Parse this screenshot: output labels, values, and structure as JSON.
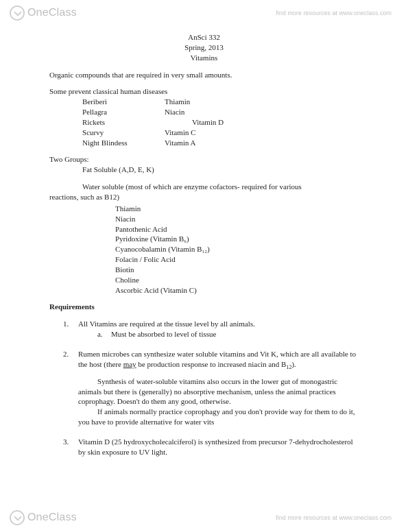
{
  "watermark": {
    "brand_one": "One",
    "brand_class": "Class",
    "tagline": "find more resources at www.oneclass.com"
  },
  "heading": {
    "course": "AnSci 332",
    "term": "Spring, 2013",
    "title": "Vitamins"
  },
  "intro": "Organic compounds that are required in very small amounts.",
  "diseases_intro": "Some prevent classical human diseases",
  "diseases": [
    {
      "name": "Beriberi",
      "vitamin": "Thiamin",
      "offset": false
    },
    {
      "name": "Pellagra",
      "vitamin": "Niacin",
      "offset": false
    },
    {
      "name": "Rickets",
      "vitamin": "Vitamin D",
      "offset": true
    },
    {
      "name": "Scurvy",
      "vitamin": "Vitamin C",
      "offset": false
    },
    {
      "name": "Night Blindess",
      "vitamin": "Vitamin A",
      "offset": false
    }
  ],
  "groups_label": "Two Groups:",
  "fat_soluble": "Fat Soluble (A,D, E, K)",
  "water_soluble_intro_a": "Water soluble (most of which are enzyme cofactors- required for various",
  "water_soluble_intro_b": "reactions, such as B12)",
  "water_soluble_list": [
    "Thiamin",
    "Niacin",
    "Pantothenic Acid",
    "Pyridoxine (Vitamin B₆)",
    "Cyanocobalamin (Vitamin B₁₂)",
    "Folacin / Folic Acid",
    "Biotin",
    "Choline",
    "Ascorbic Acid (Vitamin C)"
  ],
  "requirements_label": "Requirements",
  "req1": {
    "num": "1.",
    "text": "All Vitamins are required at the tissue level by all animals.",
    "sub_letter": "a.",
    "sub_text": "Must be absorbed to level of tissue"
  },
  "req2": {
    "num": "2.",
    "text_a": "Rumen microbes can synthesize water soluble vitamins and Vit K, which are all available to the host (there ",
    "text_may": "may",
    "text_b": " be production response to increased niacin and B",
    "text_c": ")."
  },
  "req2_block": {
    "p1": "Synthesis of water-soluble vitamins also occurs in the lower gut of monogastric animals but there is (generally) no absorptive mechanism, unless the animal practices coprophagy. Doesn't do them any good, otherwise.",
    "p2": "If animals normally practice coprophagy and you don't provide way for them to do it, you have to provide alternative for water vits"
  },
  "req3": {
    "num": "3.",
    "text": "Vitamin D (25 hydroxycholecalciferol) is synthesized from precursor 7-dehydrocholesterol by skin exposure to UV light."
  }
}
